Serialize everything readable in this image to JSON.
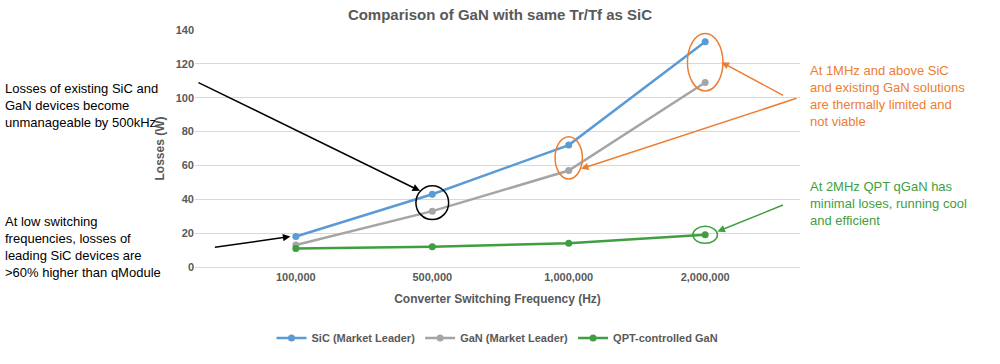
{
  "chart_data": {
    "type": "line",
    "title": "Comparison of GaN with same Tr/Tf as SiC",
    "x_label": "Converter Switching Frequency (Hz)",
    "y_label": "Losses (W)",
    "categories": [
      "100,000",
      "500,000",
      "1,000,000",
      "2,000,000"
    ],
    "series": [
      {
        "name": "SiC (Market Leader)",
        "color": "#5b9bd5",
        "marker": "circle",
        "values": [
          18,
          43,
          72,
          133
        ]
      },
      {
        "name": "GaN (Market Leader)",
        "color": "#a5a5a5",
        "marker": "circle",
        "values": [
          13,
          33,
          57,
          109
        ]
      },
      {
        "name": "QPT-controlled GaN",
        "color": "#3f9e3f",
        "marker": "circle",
        "values": [
          11,
          12,
          14,
          19
        ]
      }
    ],
    "ylim": [
      0,
      140
    ],
    "yticks": [
      0,
      20,
      40,
      60,
      80,
      100,
      120,
      140
    ],
    "grid": true,
    "legend": "bottom",
    "annotations": [
      {
        "text": [
          "Losses of existing SiC and",
          "GaN devices become",
          "unmanageable by 500kHz"
        ],
        "color": "#000000"
      },
      {
        "text": [
          "At low switching",
          "frequencies, losses of",
          "leading SiC devices are",
          ">60% higher than qModule"
        ],
        "color": "#000000"
      },
      {
        "text": [
          "At 1MHz and above SiC",
          "and existing GaN solutions",
          "are thermally limited and",
          "not viable"
        ],
        "color": "#ed7d31"
      },
      {
        "text": [
          "At 2MHz QPT qGaN has",
          "minimal loses, running cool",
          "and efficient"
        ],
        "color": "#3f9e3f"
      }
    ]
  }
}
